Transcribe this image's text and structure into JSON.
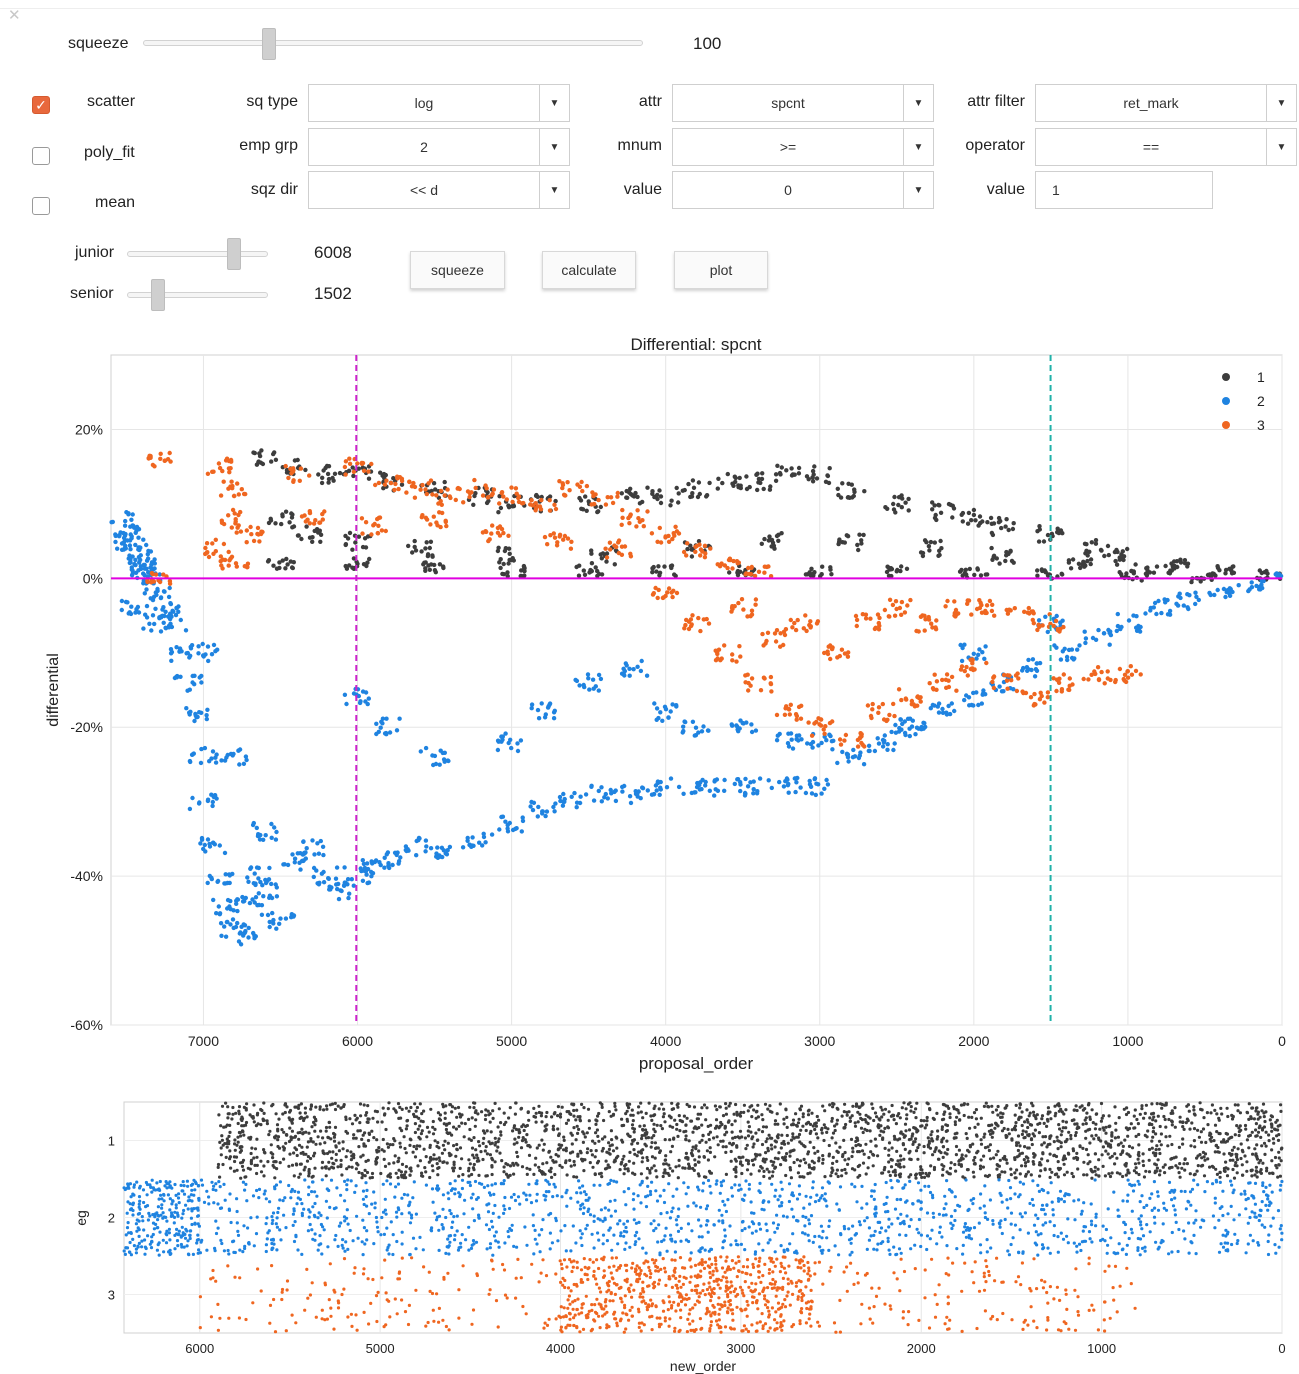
{
  "controls": {
    "squeeze_label": "squeeze",
    "squeeze_value": "100",
    "scatter_label": "scatter",
    "poly_fit_label": "poly_fit",
    "mean_label": "mean",
    "scatter_checked": true,
    "poly_fit_checked": false,
    "mean_checked": false,
    "sq_type_label": "sq type",
    "sq_type_value": "log",
    "emp_grp_label": "emp grp",
    "emp_grp_value": "2",
    "sqz_dir_label": "sqz dir",
    "sqz_dir_value": "<< d",
    "attr_label": "attr",
    "attr_value": "spcnt",
    "mnum_label": "mnum",
    "mnum_value": ">=",
    "value_label": "value",
    "value_value": "0",
    "attr_filter_label": "attr filter",
    "attr_filter_value": "ret_mark",
    "operator_label": "operator",
    "operator_value": "==",
    "value2_label": "value",
    "value2_value": "1",
    "junior_label": "junior",
    "junior_value": "6008",
    "senior_label": "senior",
    "senior_value": "1502",
    "squeeze_button": "squeeze",
    "calculate_button": "calculate",
    "plot_button": "plot",
    "accent_color": "#e8683c"
  },
  "chart_data": [
    {
      "type": "scatter",
      "title": "Differential: spcnt",
      "xlabel": "proposal_order",
      "ylabel": "differential",
      "xlim": [
        7600,
        0
      ],
      "ylim": [
        -60,
        30
      ],
      "x_ticks": [
        7000,
        6000,
        5000,
        4000,
        3000,
        2000,
        1000,
        0
      ],
      "y_ticks": [
        20,
        0,
        -20,
        -40,
        -60
      ],
      "y_tick_labels": [
        "20%",
        "0%",
        "-20%",
        "-40%",
        "-60%"
      ],
      "grid": true,
      "legend": {
        "placement": "top-right",
        "entries": [
          "1",
          "2",
          "3"
        ]
      },
      "reference_lines": [
        {
          "orientation": "horizontal",
          "value": 0,
          "color": "#e000e0",
          "style": "solid"
        },
        {
          "orientation": "vertical",
          "value": 6008,
          "color": "#cc22cc",
          "style": "dashed"
        },
        {
          "orientation": "vertical",
          "value": 1502,
          "color": "#20b2aa",
          "style": "dashed"
        }
      ],
      "series": [
        {
          "name": "1",
          "color": "#3d3d3d",
          "points": [
            [
              6600,
              16
            ],
            [
              6400,
              15
            ],
            [
              6200,
              14
            ],
            [
              6000,
              14
            ],
            [
              5800,
              13
            ],
            [
              5500,
              12
            ],
            [
              5200,
              11
            ],
            [
              5000,
              10
            ],
            [
              4800,
              10
            ],
            [
              4500,
              10
            ],
            [
              4200,
              11
            ],
            [
              4000,
              11
            ],
            [
              3800,
              12
            ],
            [
              3600,
              13
            ],
            [
              3400,
              13
            ],
            [
              3200,
              14
            ],
            [
              3000,
              14
            ],
            [
              2800,
              12
            ],
            [
              2500,
              10
            ],
            [
              2200,
              9
            ],
            [
              2000,
              8
            ],
            [
              1800,
              7
            ],
            [
              1500,
              6
            ],
            [
              1200,
              4
            ],
            [
              1000,
              3
            ],
            [
              700,
              2
            ],
            [
              400,
              1
            ],
            [
              100,
              0.5
            ],
            [
              6500,
              8
            ],
            [
              6300,
              6
            ],
            [
              6000,
              5
            ],
            [
              5600,
              4
            ],
            [
              5000,
              3
            ],
            [
              4400,
              3
            ],
            [
              3800,
              4
            ],
            [
              3300,
              5
            ],
            [
              2800,
              5
            ],
            [
              2300,
              4
            ],
            [
              1800,
              3
            ],
            [
              1300,
              2
            ],
            [
              800,
              1
            ],
            [
              6500,
              2
            ],
            [
              6000,
              2
            ],
            [
              5500,
              1.5
            ],
            [
              5000,
              1
            ],
            [
              4500,
              1
            ],
            [
              4000,
              1
            ],
            [
              3500,
              1
            ],
            [
              3000,
              1
            ],
            [
              2500,
              1
            ],
            [
              2000,
              0.8
            ],
            [
              1500,
              0.6
            ],
            [
              1000,
              0.4
            ],
            [
              500,
              0.2
            ]
          ]
        },
        {
          "name": "2",
          "color": "#1f83e0",
          "points": [
            [
              7520,
              8
            ],
            [
              7500,
              6
            ],
            [
              7480,
              5
            ],
            [
              7450,
              4
            ],
            [
              7420,
              3
            ],
            [
              7400,
              2
            ],
            [
              7380,
              1
            ],
            [
              7350,
              0
            ],
            [
              7300,
              -2
            ],
            [
              7250,
              -4
            ],
            [
              7200,
              -6
            ],
            [
              7150,
              -10
            ],
            [
              7100,
              -14
            ],
            [
              7050,
              -18
            ],
            [
              7000,
              -24
            ],
            [
              7000,
              -30
            ],
            [
              6950,
              -36
            ],
            [
              6900,
              -40
            ],
            [
              6850,
              -44
            ],
            [
              6800,
              -47
            ],
            [
              6750,
              -48
            ],
            [
              6700,
              -44
            ],
            [
              6650,
              -40
            ],
            [
              6600,
              -42
            ],
            [
              6500,
              -46
            ],
            [
              6400,
              -38
            ],
            [
              6300,
              -36
            ],
            [
              6200,
              -40
            ],
            [
              6100,
              -42
            ],
            [
              6000,
              -40
            ],
            [
              5900,
              -39
            ],
            [
              5800,
              -38
            ],
            [
              5600,
              -36
            ],
            [
              5400,
              -37
            ],
            [
              5200,
              -35
            ],
            [
              5000,
              -33
            ],
            [
              4800,
              -31
            ],
            [
              4600,
              -30
            ],
            [
              4400,
              -29
            ],
            [
              4200,
              -29
            ],
            [
              4000,
              -28
            ],
            [
              3800,
              -28
            ],
            [
              3600,
              -28
            ],
            [
              3400,
              -28
            ],
            [
              3200,
              -28
            ],
            [
              3000,
              -28
            ],
            [
              2800,
              -24
            ],
            [
              2600,
              -22
            ],
            [
              2400,
              -20
            ],
            [
              2200,
              -18
            ],
            [
              2000,
              -16
            ],
            [
              1800,
              -14
            ],
            [
              1600,
              -12
            ],
            [
              1400,
              -10
            ],
            [
              1200,
              -8
            ],
            [
              1000,
              -6
            ],
            [
              800,
              -4
            ],
            [
              600,
              -3
            ],
            [
              400,
              -2
            ],
            [
              200,
              -1
            ],
            [
              0,
              0
            ],
            [
              7450,
              -4
            ],
            [
              7300,
              -6
            ],
            [
              7000,
              -10
            ],
            [
              6800,
              -24
            ],
            [
              6600,
              -34
            ],
            [
              6000,
              -16
            ],
            [
              5800,
              -20
            ],
            [
              5500,
              -24
            ],
            [
              5000,
              -22
            ],
            [
              4800,
              -18
            ],
            [
              4500,
              -14
            ],
            [
              4200,
              -12
            ],
            [
              4000,
              -18
            ],
            [
              3800,
              -20
            ],
            [
              3500,
              -20
            ],
            [
              3200,
              -22
            ],
            [
              3000,
              -22
            ],
            [
              2500,
              -20
            ],
            [
              2000,
              -10
            ],
            [
              1500,
              -6
            ]
          ]
        },
        {
          "name": "3",
          "color": "#ef6620",
          "points": [
            [
              7300,
              16
            ],
            [
              6900,
              15
            ],
            [
              6800,
              12
            ],
            [
              6850,
              8
            ],
            [
              6900,
              4
            ],
            [
              6800,
              2
            ],
            [
              6400,
              14
            ],
            [
              6000,
              15
            ],
            [
              5800,
              13
            ],
            [
              5600,
              12
            ],
            [
              5400,
              11
            ],
            [
              5200,
              12
            ],
            [
              5000,
              11
            ],
            [
              4800,
              10
            ],
            [
              4600,
              12
            ],
            [
              4400,
              11
            ],
            [
              4200,
              8
            ],
            [
              4000,
              6
            ],
            [
              3800,
              4
            ],
            [
              3600,
              2
            ],
            [
              3400,
              1
            ],
            [
              6700,
              6
            ],
            [
              6300,
              8
            ],
            [
              5900,
              7
            ],
            [
              5500,
              8
            ],
            [
              5100,
              6
            ],
            [
              4700,
              5
            ],
            [
              4300,
              4
            ],
            [
              4000,
              -2
            ],
            [
              3800,
              -6
            ],
            [
              3600,
              -10
            ],
            [
              3400,
              -14
            ],
            [
              3200,
              -18
            ],
            [
              3000,
              -20
            ],
            [
              2800,
              -22
            ],
            [
              2600,
              -18
            ],
            [
              2400,
              -16
            ],
            [
              2200,
              -14
            ],
            [
              2000,
              -12
            ],
            [
              1800,
              -14
            ],
            [
              1600,
              -16
            ],
            [
              1400,
              -14
            ],
            [
              1200,
              -13
            ],
            [
              1000,
              -13
            ],
            [
              3500,
              -4
            ],
            [
              3300,
              -8
            ],
            [
              3100,
              -6
            ],
            [
              2900,
              -10
            ],
            [
              2700,
              -6
            ],
            [
              2500,
              -4
            ],
            [
              2300,
              -6
            ],
            [
              2100,
              -4
            ],
            [
              1900,
              -4
            ],
            [
              1700,
              -5
            ],
            [
              1500,
              -6
            ],
            [
              7300,
              0
            ]
          ]
        }
      ]
    },
    {
      "type": "scatter",
      "xlabel": "new_order",
      "ylabel": "eg",
      "xlim": [
        6420,
        0
      ],
      "ylim": [
        3.5,
        0.5
      ],
      "x_ticks": [
        6000,
        5000,
        4000,
        3000,
        2000,
        1000,
        0
      ],
      "y_ticks": [
        1,
        2,
        3
      ],
      "grid": true,
      "series": [
        {
          "name": "1",
          "color": "#3d3d3d",
          "x_range": [
            5900,
            0
          ],
          "band": 1
        },
        {
          "name": "2",
          "color": "#1f83e0",
          "x_range": [
            6420,
            0
          ],
          "band": 2,
          "dense_x_range": [
            6420,
            6000
          ]
        },
        {
          "name": "3",
          "color": "#ef6620",
          "x_range": [
            6000,
            800
          ],
          "band": 3,
          "dense_x_range": [
            4000,
            2600
          ]
        }
      ]
    }
  ]
}
